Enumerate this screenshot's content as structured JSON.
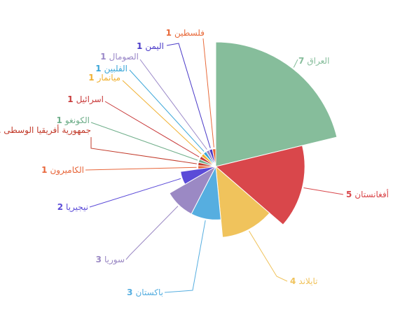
{
  "chart_data": {
    "type": "rose",
    "categories": [
      "العراق",
      "أفغانستان",
      "تايلاند",
      "باكستان",
      "سوريا",
      "نيجيريا",
      "الكاميرون",
      "جمهورية أفريقيا الوسطى",
      "الكونغو",
      "اسرائيل",
      "ميانمار",
      "الفلبين",
      "الصومال",
      "اليمن",
      "فلسطين"
    ],
    "values": [
      7,
      5,
      4,
      3,
      3,
      2,
      1,
      1,
      1,
      1,
      1,
      1,
      1,
      1,
      1
    ],
    "colors": [
      "#86bd9b",
      "#d9474b",
      "#f0c35c",
      "#56aee0",
      "#9b89c4",
      "#5b4bd8",
      "#e8663a",
      "#c23a2a",
      "#6fae8a",
      "#c83a3a",
      "#f0b030",
      "#3aa6d8",
      "#9a88c8",
      "#4a3ac8",
      "#e86a3a"
    ]
  }
}
